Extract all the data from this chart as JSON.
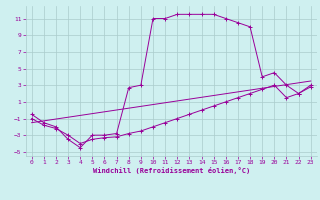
{
  "xlabel": "Windchill (Refroidissement éolien,°C)",
  "ylabel": "",
  "bg_color": "#cff0f0",
  "grid_color": "#aacccc",
  "line_color": "#990099",
  "xlim": [
    -0.5,
    23.5
  ],
  "ylim": [
    -5.5,
    12.5
  ],
  "xticks": [
    0,
    1,
    2,
    3,
    4,
    5,
    6,
    7,
    8,
    9,
    10,
    11,
    12,
    13,
    14,
    15,
    16,
    17,
    18,
    19,
    20,
    21,
    22,
    23
  ],
  "yticks": [
    -5,
    -3,
    -1,
    1,
    3,
    5,
    7,
    9,
    11
  ],
  "curve1_x": [
    0,
    1,
    2,
    3,
    4,
    5,
    6,
    7,
    8,
    9,
    10,
    11,
    12,
    13,
    14,
    15,
    16,
    17,
    18,
    19,
    20,
    21,
    22,
    23
  ],
  "curve1_y": [
    -0.5,
    -1.5,
    -2.0,
    -3.5,
    -4.5,
    -3.0,
    -3.0,
    -2.8,
    2.7,
    3.0,
    11.0,
    11.0,
    11.5,
    11.5,
    11.5,
    11.5,
    11.0,
    10.5,
    10.0,
    4.0,
    4.5,
    3.0,
    2.0,
    3.0
  ],
  "curve2_x": [
    0,
    1,
    2,
    3,
    4,
    5,
    6,
    7,
    8,
    9,
    10,
    11,
    12,
    13,
    14,
    15,
    16,
    17,
    18,
    19,
    20,
    21,
    22,
    23
  ],
  "curve2_y": [
    -1.0,
    -1.8,
    -2.2,
    -3.0,
    -4.0,
    -3.5,
    -3.3,
    -3.2,
    -2.8,
    -2.5,
    -2.0,
    -1.5,
    -1.0,
    -0.5,
    0.0,
    0.5,
    1.0,
    1.5,
    2.0,
    2.5,
    3.0,
    1.5,
    2.0,
    2.8
  ],
  "line_x": [
    0,
    23
  ],
  "line_y": [
    -1.5,
    3.5
  ]
}
